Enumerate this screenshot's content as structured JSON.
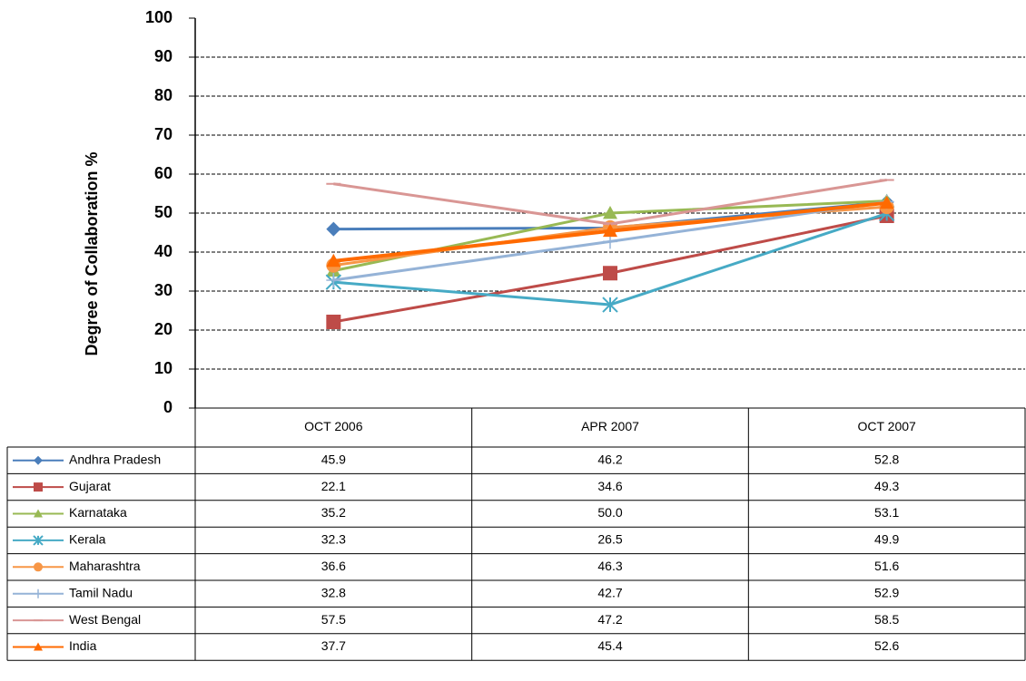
{
  "chart_data": {
    "type": "line",
    "y_label": "Degree of Collaboration  %",
    "categories": [
      "OCT 2006",
      "APR 2007",
      "OCT 2007"
    ],
    "ylim": [
      0,
      100
    ],
    "yticks": [
      0,
      10,
      20,
      30,
      40,
      50,
      60,
      70,
      80,
      90,
      100
    ],
    "grid": true,
    "series": [
      {
        "name": "Andhra Pradesh",
        "color": "#4a7ebb",
        "marker": "diamond",
        "values": [
          45.9,
          46.2,
          52.8
        ]
      },
      {
        "name": "Gujarat",
        "color": "#be4b48",
        "marker": "square",
        "values": [
          22.1,
          34.6,
          49.3
        ]
      },
      {
        "name": "Karnataka",
        "color": "#98b954",
        "marker": "triangle",
        "values": [
          35.2,
          50,
          53.1
        ],
        "value_labels": [
          "35.2",
          "50.0",
          "53.1"
        ]
      },
      {
        "name": "Kerala",
        "color": "#46aac5",
        "marker": "star",
        "values": [
          32.3,
          26.5,
          49.9
        ]
      },
      {
        "name": "Maharashtra",
        "color": "#f79646",
        "marker": "circle",
        "values": [
          36.6,
          46.3,
          51.6
        ]
      },
      {
        "name": "Tamil Nadu",
        "color": "#95b3d7",
        "marker": "plus",
        "values": [
          32.8,
          42.7,
          52.9
        ]
      },
      {
        "name": "West Bengal",
        "color": "#d99694",
        "marker": "dash",
        "values": [
          57.5,
          47.2,
          58.5
        ]
      },
      {
        "name": "India",
        "color": "#ff6a00",
        "marker": "triangle",
        "values": [
          37.7,
          45.4,
          52.6
        ]
      }
    ]
  }
}
